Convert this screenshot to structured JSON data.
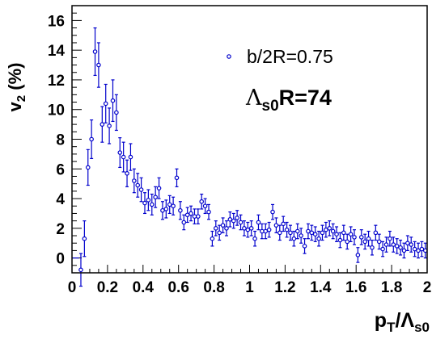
{
  "chart_data": {
    "type": "scatter",
    "title": "",
    "xlabel": {
      "main": "p",
      "sub1": "T",
      "slash": "/Λ",
      "sub2": "s0"
    },
    "ylabel": {
      "main": "v",
      "sub": "2",
      "unit": " (%)"
    },
    "xlim": [
      0,
      2
    ],
    "ylim": [
      -1,
      17
    ],
    "x_ticks": [
      "0",
      "0.2",
      "0.4",
      "0.6",
      "0.8",
      "1",
      "1.2",
      "1.4",
      "1.6",
      "1.8",
      "2"
    ],
    "y_ticks": [
      "0",
      "2",
      "4",
      "6",
      "8",
      "10",
      "12",
      "14",
      "16"
    ],
    "grid": false,
    "legend": {
      "placement": "top-right",
      "entry": "b/2R=0.75"
    },
    "annotation": {
      "symbol": "Λ",
      "sub": "s0",
      "rest": "R=74"
    },
    "series": [
      {
        "color": "#0000cc",
        "marker": "open-circle",
        "x": [
          0.01,
          0.03,
          0.05,
          0.07,
          0.09,
          0.11,
          0.13,
          0.15,
          0.17,
          0.19,
          0.21,
          0.23,
          0.25,
          0.27,
          0.29,
          0.31,
          0.33,
          0.35,
          0.37,
          0.39,
          0.41,
          0.43,
          0.45,
          0.47,
          0.49,
          0.51,
          0.53,
          0.55,
          0.57,
          0.59,
          0.61,
          0.63,
          0.65,
          0.67,
          0.69,
          0.71,
          0.73,
          0.75,
          0.77,
          0.79,
          0.81,
          0.83,
          0.85,
          0.87,
          0.89,
          0.91,
          0.93,
          0.95,
          0.97,
          0.99,
          1.01,
          1.03,
          1.05,
          1.07,
          1.09,
          1.11,
          1.13,
          1.15,
          1.17,
          1.19,
          1.21,
          1.23,
          1.25,
          1.27,
          1.29,
          1.31,
          1.33,
          1.35,
          1.37,
          1.39,
          1.41,
          1.43,
          1.45,
          1.47,
          1.49,
          1.51,
          1.53,
          1.55,
          1.57,
          1.59,
          1.61,
          1.63,
          1.65,
          1.67,
          1.69,
          1.71,
          1.73,
          1.75,
          1.77,
          1.79,
          1.81,
          1.83,
          1.85,
          1.87,
          1.89,
          1.91,
          1.93,
          1.95,
          1.97,
          1.99
        ],
        "y": [
          0.0,
          0.0,
          -0.8,
          1.3,
          6.1,
          8.0,
          13.9,
          13.0,
          9.0,
          10.4,
          8.9,
          10.6,
          9.8,
          7.1,
          6.8,
          5.7,
          6.8,
          5.2,
          4.9,
          4.6,
          3.7,
          3.9,
          3.6,
          4.1,
          4.7,
          3.2,
          3.3,
          3.6,
          3.5,
          5.4,
          3.2,
          2.4,
          2.9,
          3.0,
          2.8,
          2.8,
          3.8,
          3.5,
          3.1,
          1.3,
          2.0,
          1.7,
          2.2,
          2.0,
          2.6,
          2.5,
          2.7,
          2.4,
          2.0,
          1.9,
          2.0,
          1.3,
          2.4,
          1.8,
          1.8,
          1.9,
          3.1,
          2.2,
          1.7,
          2.3,
          1.9,
          1.7,
          1.3,
          1.8,
          1.5,
          0.8,
          1.8,
          1.7,
          1.6,
          1.3,
          1.7,
          1.9,
          2.0,
          1.8,
          1.6,
          1.2,
          1.7,
          1.1,
          1.6,
          1.4,
          0.2,
          1.4,
          1.1,
          1.3,
          0.7,
          1.7,
          1.1,
          0.6,
          0.9,
          1.3,
          0.9,
          0.8,
          0.7,
          0.5,
          1.0,
          0.9,
          0.6,
          0.5,
          0.6,
          0.5
        ],
        "err": [
          0.0,
          0.0,
          1.1,
          1.2,
          1.2,
          1.3,
          1.6,
          1.5,
          1.2,
          1.3,
          1.2,
          1.4,
          1.2,
          1.0,
          1.0,
          0.9,
          0.9,
          0.8,
          0.8,
          0.8,
          0.7,
          0.7,
          0.7,
          0.7,
          0.7,
          0.6,
          0.6,
          0.6,
          0.6,
          0.6,
          0.6,
          0.5,
          0.5,
          0.5,
          0.5,
          0.5,
          0.5,
          0.5,
          0.5,
          0.5,
          0.5,
          0.5,
          0.5,
          0.5,
          0.5,
          0.5,
          0.5,
          0.5,
          0.5,
          0.5,
          0.5,
          0.5,
          0.5,
          0.5,
          0.5,
          0.5,
          0.5,
          0.5,
          0.5,
          0.5,
          0.5,
          0.5,
          0.5,
          0.5,
          0.5,
          0.5,
          0.5,
          0.5,
          0.5,
          0.5,
          0.5,
          0.5,
          0.5,
          0.5,
          0.5,
          0.5,
          0.5,
          0.5,
          0.5,
          0.5,
          0.5,
          0.5,
          0.5,
          0.5,
          0.5,
          0.5,
          0.5,
          0.5,
          0.5,
          0.5,
          0.5,
          0.5,
          0.5,
          0.5,
          0.5,
          0.5,
          0.5,
          0.5,
          0.5,
          0.5
        ]
      }
    ]
  }
}
